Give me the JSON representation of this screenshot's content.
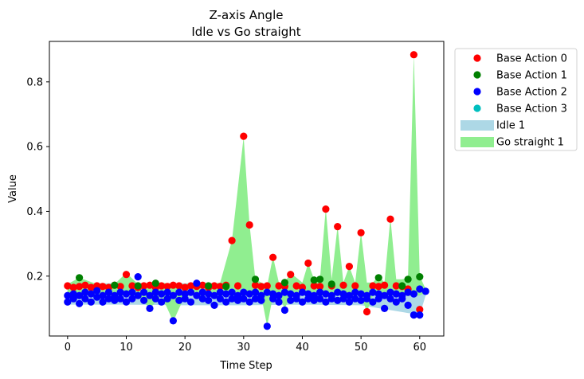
{
  "chart_data": {
    "type": "scatter",
    "title_line1": "Z-axis Angle",
    "title_line2": "Idle vs Go straight",
    "xlabel": "Time Step",
    "ylabel": "Value",
    "xlim": [
      -3.1,
      64.1
    ],
    "ylim": [
      0.015,
      0.925
    ],
    "x_ticks": [
      0,
      10,
      20,
      30,
      40,
      50,
      60
    ],
    "y_ticks": [
      0.2,
      0.4,
      0.6,
      0.8
    ],
    "legend_position": "outside-right",
    "legend": [
      {
        "label": "Base Action 0",
        "kind": "marker",
        "color": "#ff0000"
      },
      {
        "label": "Base Action 1",
        "kind": "marker",
        "color": "#008000"
      },
      {
        "label": "Base Action 2",
        "kind": "marker",
        "color": "#0000ff"
      },
      {
        "label": "Base Action 3",
        "kind": "marker",
        "color": "#00bfbf"
      },
      {
        "label": "Idle 1",
        "kind": "band",
        "color": "#add8e6"
      },
      {
        "label": "Go straight 1",
        "kind": "band",
        "color": "#90ee90"
      }
    ],
    "bands": [
      {
        "name": "Idle 1",
        "color": "#add8e6",
        "x": [
          0,
          10,
          20,
          30,
          40,
          50,
          60,
          61
        ],
        "upper": [
          0.178,
          0.178,
          0.178,
          0.178,
          0.178,
          0.178,
          0.178,
          0.165
        ],
        "lower": [
          0.112,
          0.112,
          0.11,
          0.11,
          0.112,
          0.11,
          0.08,
          0.14
        ]
      },
      {
        "name": "Go straight 1",
        "color": "#90ee90",
        "x": [
          0,
          2,
          5,
          8,
          10,
          12,
          14,
          16,
          18,
          20,
          22,
          24,
          26,
          28,
          30,
          31,
          32,
          33,
          34,
          35,
          36,
          37,
          38,
          40,
          41,
          42,
          43,
          44,
          45,
          46,
          47,
          48,
          49,
          50,
          51,
          52,
          53,
          54,
          55,
          56,
          57,
          58,
          59,
          60,
          61
        ],
        "upper": [
          0.175,
          0.195,
          0.175,
          0.175,
          0.21,
          0.175,
          0.175,
          0.18,
          0.175,
          0.175,
          0.18,
          0.175,
          0.18,
          0.31,
          0.63,
          0.36,
          0.19,
          0.18,
          0.17,
          0.26,
          0.18,
          0.18,
          0.21,
          0.18,
          0.24,
          0.19,
          0.19,
          0.41,
          0.19,
          0.355,
          0.18,
          0.23,
          0.18,
          0.335,
          0.18,
          0.18,
          0.2,
          0.18,
          0.38,
          0.19,
          0.19,
          0.195,
          0.885,
          0.2,
          0.16
        ],
        "lower": [
          0.14,
          0.14,
          0.14,
          0.14,
          0.14,
          0.14,
          0.1,
          0.14,
          0.06,
          0.14,
          0.14,
          0.14,
          0.14,
          0.14,
          0.14,
          0.14,
          0.14,
          0.14,
          0.045,
          0.14,
          0.14,
          0.1,
          0.14,
          0.14,
          0.14,
          0.14,
          0.14,
          0.14,
          0.14,
          0.14,
          0.14,
          0.14,
          0.14,
          0.14,
          0.09,
          0.14,
          0.14,
          0.14,
          0.14,
          0.14,
          0.14,
          0.14,
          0.14,
          0.14,
          0.15
        ]
      }
    ],
    "series": [
      {
        "name": "Base Action 0",
        "color": "#ff0000",
        "points": [
          [
            0,
            0.17
          ],
          [
            1,
            0.165
          ],
          [
            2,
            0.168
          ],
          [
            3,
            0.172
          ],
          [
            4,
            0.165
          ],
          [
            5,
            0.17
          ],
          [
            6,
            0.168
          ],
          [
            7,
            0.165
          ],
          [
            8,
            0.172
          ],
          [
            9,
            0.168
          ],
          [
            10,
            0.205
          ],
          [
            11,
            0.17
          ],
          [
            12,
            0.165
          ],
          [
            13,
            0.17
          ],
          [
            14,
            0.172
          ],
          [
            15,
            0.165
          ],
          [
            16,
            0.17
          ],
          [
            17,
            0.168
          ],
          [
            18,
            0.172
          ],
          [
            19,
            0.17
          ],
          [
            20,
            0.165
          ],
          [
            21,
            0.17
          ],
          [
            22,
            0.168
          ],
          [
            23,
            0.172
          ],
          [
            24,
            0.165
          ],
          [
            25,
            0.17
          ],
          [
            26,
            0.168
          ],
          [
            27,
            0.172
          ],
          [
            28,
            0.31
          ],
          [
            29,
            0.17
          ],
          [
            30,
            0.632
          ],
          [
            31,
            0.358
          ],
          [
            32,
            0.172
          ],
          [
            33,
            0.168
          ],
          [
            34,
            0.17
          ],
          [
            35,
            0.258
          ],
          [
            36,
            0.17
          ],
          [
            37,
            0.168
          ],
          [
            38,
            0.205
          ],
          [
            39,
            0.17
          ],
          [
            40,
            0.165
          ],
          [
            41,
            0.24
          ],
          [
            42,
            0.17
          ],
          [
            43,
            0.168
          ],
          [
            44,
            0.407
          ],
          [
            45,
            0.17
          ],
          [
            46,
            0.353
          ],
          [
            47,
            0.172
          ],
          [
            48,
            0.23
          ],
          [
            49,
            0.17
          ],
          [
            50,
            0.334
          ],
          [
            51,
            0.09
          ],
          [
            52,
            0.17
          ],
          [
            53,
            0.168
          ],
          [
            54,
            0.172
          ],
          [
            55,
            0.376
          ],
          [
            56,
            0.17
          ],
          [
            57,
            0.168
          ],
          [
            58,
            0.16
          ],
          [
            59,
            0.884
          ],
          [
            60,
            0.097
          ]
        ]
      },
      {
        "name": "Base Action 1",
        "color": "#008000",
        "points": [
          [
            2,
            0.195
          ],
          [
            8,
            0.172
          ],
          [
            12,
            0.17
          ],
          [
            15,
            0.178
          ],
          [
            24,
            0.17
          ],
          [
            27,
            0.168
          ],
          [
            32,
            0.19
          ],
          [
            37,
            0.18
          ],
          [
            42,
            0.188
          ],
          [
            43,
            0.19
          ],
          [
            45,
            0.175
          ],
          [
            53,
            0.195
          ],
          [
            57,
            0.17
          ],
          [
            58,
            0.19
          ],
          [
            60,
            0.198
          ]
        ]
      },
      {
        "name": "Base Action 2",
        "color": "#0000ff",
        "points": [
          [
            0,
            0.14
          ],
          [
            0,
            0.12
          ],
          [
            1,
            0.13
          ],
          [
            1,
            0.145
          ],
          [
            2,
            0.115
          ],
          [
            2,
            0.14
          ],
          [
            3,
            0.13
          ],
          [
            3,
            0.15
          ],
          [
            4,
            0.12
          ],
          [
            4,
            0.145
          ],
          [
            5,
            0.135
          ],
          [
            5,
            0.155
          ],
          [
            6,
            0.12
          ],
          [
            6,
            0.14
          ],
          [
            7,
            0.13
          ],
          [
            7,
            0.15
          ],
          [
            8,
            0.125
          ],
          [
            8,
            0.14
          ],
          [
            9,
            0.13
          ],
          [
            9,
            0.15
          ],
          [
            10,
            0.12
          ],
          [
            10,
            0.145
          ],
          [
            11,
            0.13
          ],
          [
            11,
            0.15
          ],
          [
            12,
            0.198
          ],
          [
            12,
            0.14
          ],
          [
            13,
            0.125
          ],
          [
            13,
            0.15
          ],
          [
            14,
            0.1
          ],
          [
            14,
            0.14
          ],
          [
            15,
            0.13
          ],
          [
            15,
            0.15
          ],
          [
            16,
            0.12
          ],
          [
            16,
            0.145
          ],
          [
            17,
            0.13
          ],
          [
            17,
            0.15
          ],
          [
            18,
            0.062
          ],
          [
            18,
            0.14
          ],
          [
            19,
            0.125
          ],
          [
            19,
            0.15
          ],
          [
            20,
            0.13
          ],
          [
            20,
            0.145
          ],
          [
            21,
            0.12
          ],
          [
            21,
            0.15
          ],
          [
            22,
            0.178
          ],
          [
            22,
            0.14
          ],
          [
            23,
            0.13
          ],
          [
            23,
            0.15
          ],
          [
            24,
            0.125
          ],
          [
            24,
            0.145
          ],
          [
            25,
            0.11
          ],
          [
            25,
            0.14
          ],
          [
            26,
            0.13
          ],
          [
            26,
            0.15
          ],
          [
            27,
            0.12
          ],
          [
            27,
            0.145
          ],
          [
            28,
            0.13
          ],
          [
            28,
            0.15
          ],
          [
            29,
            0.125
          ],
          [
            29,
            0.14
          ],
          [
            30,
            0.13
          ],
          [
            30,
            0.15
          ],
          [
            31,
            0.12
          ],
          [
            31,
            0.145
          ],
          [
            32,
            0.13
          ],
          [
            32,
            0.15
          ],
          [
            33,
            0.125
          ],
          [
            33,
            0.14
          ],
          [
            34,
            0.045
          ],
          [
            34,
            0.15
          ],
          [
            35,
            0.13
          ],
          [
            35,
            0.145
          ],
          [
            36,
            0.12
          ],
          [
            36,
            0.14
          ],
          [
            37,
            0.095
          ],
          [
            37,
            0.15
          ],
          [
            38,
            0.125
          ],
          [
            38,
            0.145
          ],
          [
            39,
            0.13
          ],
          [
            39,
            0.14
          ],
          [
            40,
            0.12
          ],
          [
            40,
            0.15
          ],
          [
            41,
            0.13
          ],
          [
            41,
            0.145
          ],
          [
            42,
            0.125
          ],
          [
            42,
            0.14
          ],
          [
            43,
            0.13
          ],
          [
            43,
            0.15
          ],
          [
            44,
            0.12
          ],
          [
            44,
            0.145
          ],
          [
            45,
            0.13
          ],
          [
            45,
            0.14
          ],
          [
            46,
            0.125
          ],
          [
            46,
            0.15
          ],
          [
            47,
            0.13
          ],
          [
            47,
            0.145
          ],
          [
            48,
            0.12
          ],
          [
            48,
            0.14
          ],
          [
            49,
            0.13
          ],
          [
            49,
            0.15
          ],
          [
            50,
            0.125
          ],
          [
            50,
            0.145
          ],
          [
            51,
            0.13
          ],
          [
            51,
            0.14
          ],
          [
            52,
            0.12
          ],
          [
            52,
            0.15
          ],
          [
            53,
            0.13
          ],
          [
            53,
            0.145
          ],
          [
            54,
            0.1
          ],
          [
            54,
            0.14
          ],
          [
            55,
            0.13
          ],
          [
            55,
            0.15
          ],
          [
            56,
            0.12
          ],
          [
            56,
            0.145
          ],
          [
            57,
            0.13
          ],
          [
            57,
            0.14
          ],
          [
            58,
            0.11
          ],
          [
            58,
            0.15
          ],
          [
            59,
            0.08
          ],
          [
            59,
            0.145
          ],
          [
            60,
            0.08
          ],
          [
            60,
            0.16
          ],
          [
            61,
            0.153
          ]
        ]
      },
      {
        "name": "Base Action 3",
        "color": "#00bfbf",
        "points": []
      }
    ]
  }
}
